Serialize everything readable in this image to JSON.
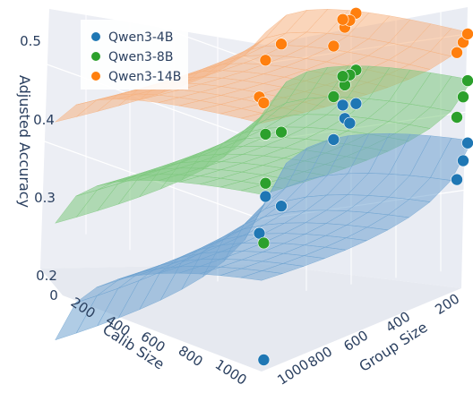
{
  "chart_data": {
    "type": "scatter",
    "subtype": "3d-scatter-with-fitted-surfaces",
    "axes": {
      "z": {
        "label": "Adjusted Accuracy",
        "ticks": [
          "0",
          "0.2",
          "0.3",
          "0.4",
          "0.5"
        ]
      },
      "x": {
        "label": "Calib Size",
        "ticks": [
          "200",
          "400",
          "600",
          "800",
          "1000"
        ]
      },
      "y": {
        "label": "Group Size",
        "ticks": [
          "200",
          "400",
          "600",
          "800",
          "1000"
        ]
      }
    },
    "legend": {
      "placement": "top-left"
    },
    "grid": true,
    "series": [
      {
        "name": "Qwen3-4B",
        "color": "#1f77b4",
        "surface_color": "#6fa3d0",
        "points": [
          {
            "calib": 100,
            "group": 128,
            "acc": 0.155
          },
          {
            "calib": 128,
            "group": 128,
            "acc": 0.205
          },
          {
            "calib": 200,
            "group": 128,
            "acc": 0.2
          },
          {
            "calib": 1000,
            "group": 128,
            "acc": 0.315
          },
          {
            "calib": 1000,
            "group": 100,
            "acc": 0.338
          },
          {
            "calib": 1000,
            "group": 80,
            "acc": 0.36
          },
          {
            "calib": 512,
            "group": 512,
            "acc": 0.05
          },
          {
            "calib": 512,
            "group": 200,
            "acc": 0.32
          },
          {
            "calib": 512,
            "group": 150,
            "acc": 0.345
          },
          {
            "calib": 512,
            "group": 100,
            "acc": 0.362
          },
          {
            "calib": 512,
            "group": 128,
            "acc": 0.338
          },
          {
            "calib": 480,
            "group": 128,
            "acc": 0.358
          }
        ]
      },
      {
        "name": "Qwen3-8B",
        "color": "#2ca02c",
        "surface_color": "#7dc87d",
        "points": [
          {
            "calib": 128,
            "group": 128,
            "acc": 0.222
          },
          {
            "calib": 128,
            "group": 128,
            "acc": 0.285
          },
          {
            "calib": 200,
            "group": 128,
            "acc": 0.295
          },
          {
            "calib": 1000,
            "group": 128,
            "acc": 0.395
          },
          {
            "calib": 1000,
            "group": 100,
            "acc": 0.42
          },
          {
            "calib": 1000,
            "group": 80,
            "acc": 0.44
          },
          {
            "calib": 512,
            "group": 512,
            "acc": 0.2
          },
          {
            "calib": 512,
            "group": 200,
            "acc": 0.375
          },
          {
            "calib": 512,
            "group": 150,
            "acc": 0.388
          },
          {
            "calib": 512,
            "group": 100,
            "acc": 0.405
          },
          {
            "calib": 512,
            "group": 128,
            "acc": 0.4
          },
          {
            "calib": 480,
            "group": 128,
            "acc": 0.395
          }
        ]
      },
      {
        "name": "Qwen3-14B",
        "color": "#ff7f0e",
        "surface_color": "#f5b382",
        "points": [
          {
            "calib": 100,
            "group": 128,
            "acc": 0.33
          },
          {
            "calib": 128,
            "group": 128,
            "acc": 0.38
          },
          {
            "calib": 200,
            "group": 128,
            "acc": 0.408
          },
          {
            "calib": 1000,
            "group": 128,
            "acc": 0.478
          },
          {
            "calib": 1000,
            "group": 100,
            "acc": 0.49
          },
          {
            "calib": 1000,
            "group": 80,
            "acc": 0.5
          },
          {
            "calib": 512,
            "group": 512,
            "acc": 0.38
          },
          {
            "calib": 512,
            "group": 200,
            "acc": 0.44
          },
          {
            "calib": 512,
            "group": 150,
            "acc": 0.462
          },
          {
            "calib": 512,
            "group": 100,
            "acc": 0.478
          },
          {
            "calib": 512,
            "group": 128,
            "acc": 0.47
          },
          {
            "calib": 480,
            "group": 128,
            "acc": 0.468
          }
        ]
      }
    ]
  }
}
